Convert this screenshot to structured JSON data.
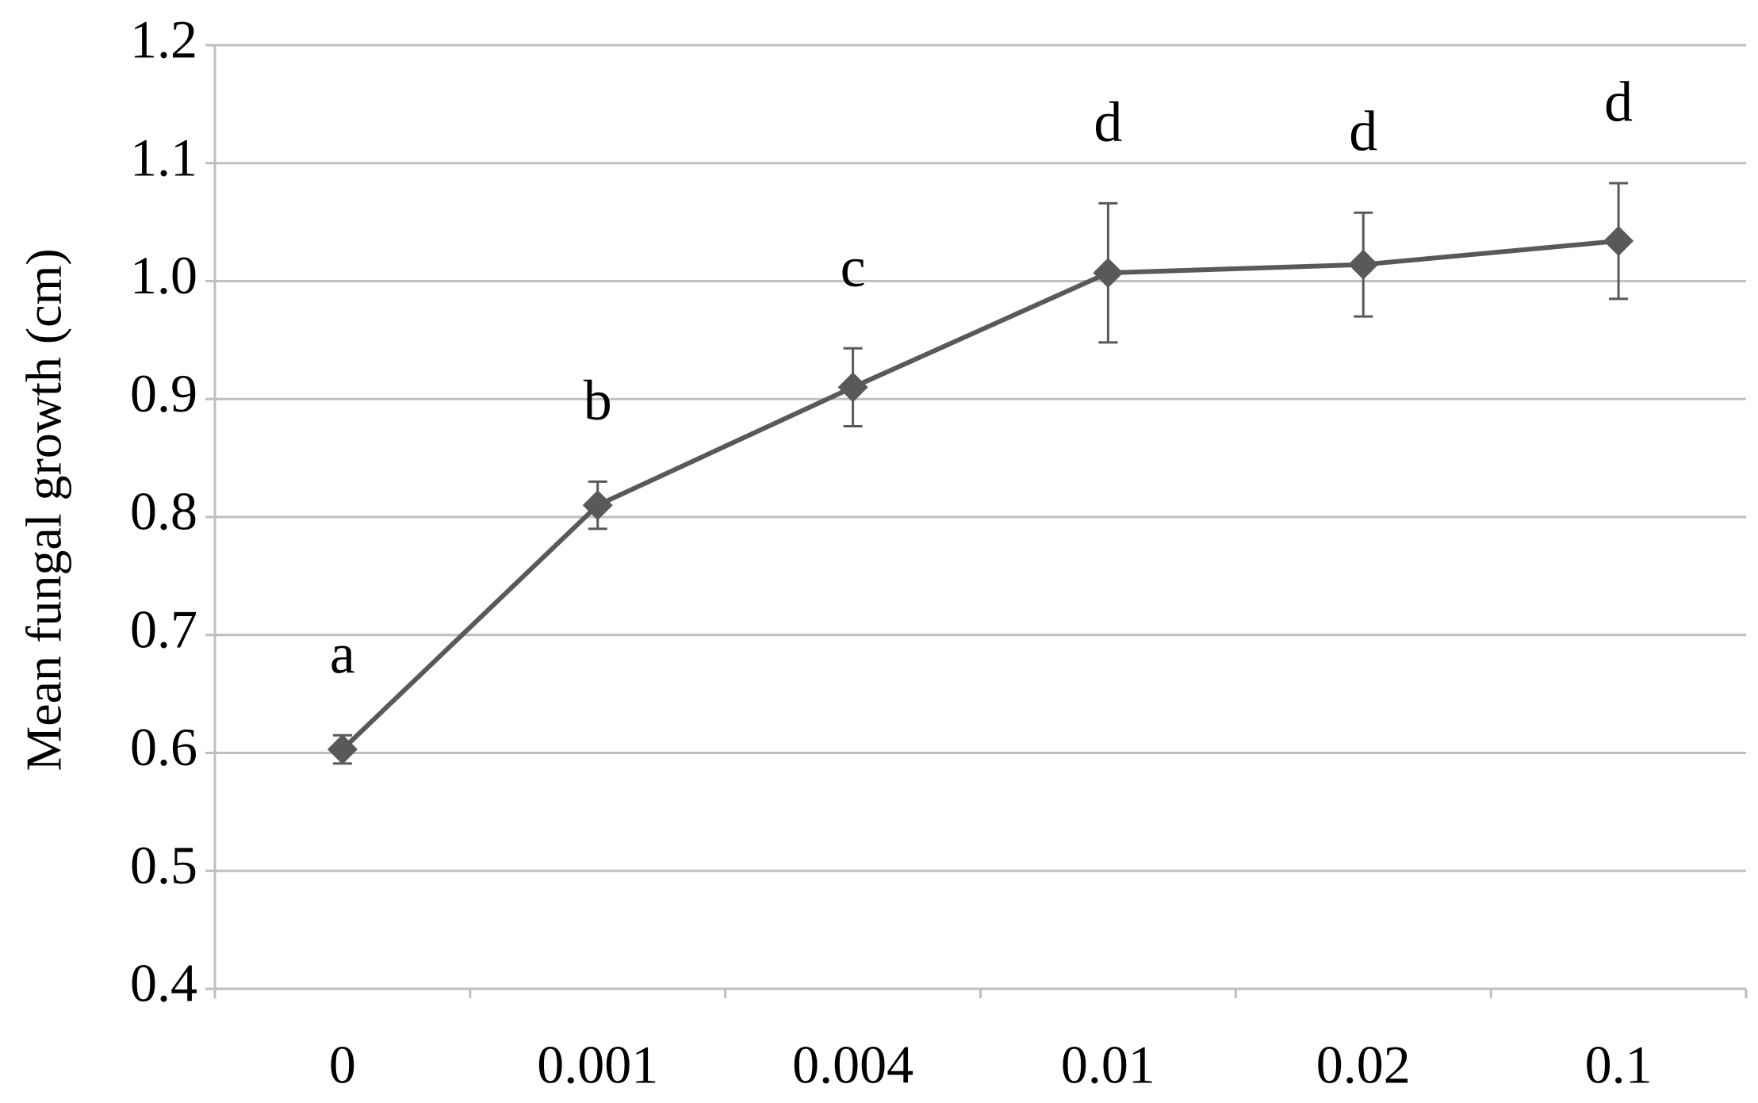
{
  "chart_data": {
    "type": "line",
    "y_label": "Mean fungal growth (cm)",
    "categories": [
      "0",
      "0.001",
      "0.004",
      "0.01",
      "0.02",
      "0.1"
    ],
    "values": [
      0.603,
      0.81,
      0.91,
      1.007,
      1.014,
      1.034
    ],
    "errors": [
      0.012,
      0.02,
      0.033,
      0.059,
      0.044,
      0.049
    ],
    "annotations": [
      "a",
      "b",
      "c",
      "d",
      "d",
      "d"
    ],
    "color": "#595959",
    "ylim": [
      0.4,
      1.2
    ],
    "yticks": [
      0.4,
      0.5,
      0.6,
      0.7,
      0.8,
      0.9,
      {
        "value": 1.0,
        "label": "1.0"
      },
      1.1,
      1.2
    ],
    "grid": true
  }
}
